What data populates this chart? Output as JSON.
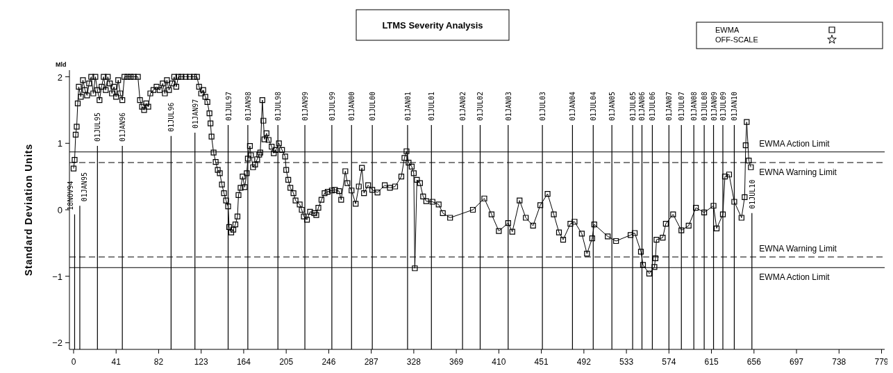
{
  "chart_data": {
    "type": "line",
    "title": "LTMS Severity Analysis",
    "ylabel": "Standard Deviation Units",
    "annotations": [
      "Mld"
    ],
    "xlim": [
      -4,
      782
    ],
    "xticks": [
      0,
      41,
      82,
      123,
      164,
      205,
      246,
      287,
      328,
      369,
      410,
      451,
      492,
      533,
      574,
      615,
      656,
      697,
      738,
      779
    ],
    "ylim": [
      -2.1,
      2.1
    ],
    "yticks": [
      -2,
      -1,
      0,
      1,
      2
    ],
    "grid": false,
    "legend": "top right",
    "line_style": "solid",
    "series": [
      {
        "name": "EWMA",
        "color": "#000000",
        "marker": "square",
        "x": [
          0,
          1,
          2,
          3,
          4,
          5,
          7,
          9,
          11,
          13,
          15,
          17,
          19,
          21,
          23,
          25,
          27,
          29,
          31,
          33,
          35,
          37,
          39,
          41,
          43,
          45,
          47,
          49,
          52,
          55,
          58,
          62,
          64,
          66,
          68,
          70,
          72,
          74,
          77,
          80,
          83,
          86,
          88,
          90,
          92,
          95,
          97,
          99,
          101,
          104,
          108,
          112,
          116,
          119,
          121,
          123,
          125,
          127,
          129,
          131,
          132,
          133,
          135,
          137,
          139,
          141,
          143,
          145,
          147,
          149,
          150,
          152,
          154,
          156,
          158,
          159,
          161,
          163,
          165,
          167,
          168,
          170,
          171,
          173,
          175,
          177,
          179,
          180,
          182,
          183,
          184,
          186,
          188,
          191,
          193,
          195,
          198,
          201,
          204,
          205,
          207,
          209,
          212,
          214,
          218,
          220,
          222,
          225,
          228,
          232,
          234,
          236,
          239,
          242,
          245,
          249,
          252,
          256,
          258,
          262,
          264,
          268,
          272,
          275,
          278,
          280,
          284,
          288,
          293,
          300,
          305,
          310,
          316,
          319,
          321,
          323,
          326,
          328,
          329,
          331,
          334,
          337,
          340,
          346,
          352,
          356,
          363,
          385,
          396,
          403,
          410,
          419,
          423,
          430,
          436,
          443,
          450,
          457,
          463,
          468,
          472,
          479,
          483,
          490,
          495,
          500,
          502,
          515,
          523,
          537,
          541,
          547,
          549,
          555,
          560,
          561,
          562,
          568,
          571,
          578,
          586,
          593,
          600,
          608,
          617,
          620,
          626,
          628,
          632,
          637,
          644,
          647,
          648,
          649,
          651,
          653
        ],
        "values": [
          0.62,
          0.75,
          1.13,
          1.25,
          1.6,
          1.85,
          1.7,
          1.95,
          1.8,
          1.72,
          1.9,
          2.0,
          1.75,
          2.0,
          1.8,
          1.65,
          1.85,
          2.0,
          1.8,
          2.0,
          1.9,
          1.75,
          1.85,
          1.7,
          1.95,
          1.75,
          1.65,
          2.0,
          2.0,
          2.0,
          2.0,
          2.0,
          1.65,
          1.55,
          1.5,
          1.6,
          1.55,
          1.75,
          1.8,
          1.85,
          1.8,
          1.9,
          1.75,
          1.95,
          1.8,
          1.9,
          2.0,
          1.85,
          2.0,
          2.0,
          2.0,
          2.0,
          2.0,
          2.0,
          1.85,
          1.75,
          1.8,
          1.7,
          1.62,
          1.45,
          1.3,
          1.1,
          0.86,
          0.72,
          0.6,
          0.55,
          0.38,
          0.25,
          0.14,
          0.05,
          -0.26,
          -0.34,
          -0.3,
          -0.22,
          -0.1,
          0.22,
          0.33,
          0.5,
          0.34,
          0.55,
          0.77,
          0.96,
          0.82,
          0.64,
          0.68,
          0.76,
          0.83,
          0.86,
          1.65,
          1.34,
          1.06,
          1.15,
          1.05,
          0.95,
          0.85,
          0.9,
          1.0,
          0.9,
          0.8,
          0.6,
          0.45,
          0.33,
          0.25,
          0.14,
          0.08,
          0.0,
          -0.1,
          -0.15,
          -0.03,
          -0.05,
          -0.08,
          0.03,
          0.15,
          0.25,
          0.27,
          0.29,
          0.3,
          0.28,
          0.15,
          0.58,
          0.4,
          0.29,
          0.09,
          0.35,
          0.63,
          0.25,
          0.37,
          0.3,
          0.26,
          0.37,
          0.33,
          0.35,
          0.5,
          0.78,
          0.88,
          0.71,
          0.65,
          0.55,
          -0.88,
          0.45,
          0.4,
          0.2,
          0.13,
          0.12,
          0.08,
          -0.05,
          -0.12,
          0.0,
          0.17,
          -0.07,
          -0.32,
          -0.2,
          -0.33,
          0.14,
          -0.12,
          -0.24,
          0.07,
          0.24,
          -0.07,
          -0.34,
          -0.45,
          -0.21,
          -0.18,
          -0.36,
          -0.66,
          -0.43,
          -0.22,
          -0.4,
          -0.47,
          -0.38,
          -0.35,
          -0.63,
          -0.83,
          -0.96,
          -0.86,
          -0.73,
          -0.45,
          -0.42,
          -0.21,
          -0.07,
          -0.31,
          -0.24,
          0.03,
          -0.04,
          0.06,
          -0.28,
          -0.07,
          0.5,
          0.53,
          0.12,
          -0.12,
          0.19,
          0.97,
          1.32,
          0.74,
          0.64
        ]
      },
      {
        "name": "OFF-SCALE",
        "color": "#000000",
        "marker": "star"
      }
    ],
    "ref_lines": [
      {
        "axis": "y",
        "value": 0.87,
        "label": "EWMA Action Limit",
        "line_style": "solid",
        "color": "#000000"
      },
      {
        "axis": "y",
        "value": 0.71,
        "label": "EWNA Warning Limit",
        "line_style": "dashed",
        "color": "#000000"
      },
      {
        "axis": "y",
        "value": -0.71,
        "label": "EWNA Warning Limit",
        "line_style": "dashed",
        "color": "#000000"
      },
      {
        "axis": "y",
        "value": -0.87,
        "label": "EWMA Action Limit",
        "line_style": "solid",
        "color": "#000000"
      },
      {
        "axis": "x",
        "value": 1,
        "label": "18NOV94"
      },
      {
        "axis": "x",
        "value": 6,
        "label": "01JAN95"
      },
      {
        "axis": "x",
        "value": 23,
        "label": "01JUL95"
      },
      {
        "axis": "x",
        "value": 47,
        "label": "01JAN96"
      },
      {
        "axis": "x",
        "value": 94,
        "label": "01JUL96"
      },
      {
        "axis": "x",
        "value": 117,
        "label": "01JAN97"
      },
      {
        "axis": "x",
        "value": 149,
        "label": "01JUL97"
      },
      {
        "axis": "x",
        "value": 168,
        "label": "01JAN98"
      },
      {
        "axis": "x",
        "value": 197,
        "label": "01JUL98"
      },
      {
        "axis": "x",
        "value": 223,
        "label": "01JAN99"
      },
      {
        "axis": "x",
        "value": 249,
        "label": "01JUL99"
      },
      {
        "axis": "x",
        "value": 268,
        "label": "01JAN00"
      },
      {
        "axis": "x",
        "value": 288,
        "label": "01JUL00"
      },
      {
        "axis": "x",
        "value": 322,
        "label": "01JAN01"
      },
      {
        "axis": "x",
        "value": 345,
        "label": "01JUL01"
      },
      {
        "axis": "x",
        "value": 375,
        "label": "01JAN02"
      },
      {
        "axis": "x",
        "value": 392,
        "label": "01JUL02"
      },
      {
        "axis": "x",
        "value": 419,
        "label": "01JAN03"
      },
      {
        "axis": "x",
        "value": 452,
        "label": "01JUL03"
      },
      {
        "axis": "x",
        "value": 481,
        "label": "01JAN04"
      },
      {
        "axis": "x",
        "value": 501,
        "label": "01JUL04"
      },
      {
        "axis": "x",
        "value": 519,
        "label": "01JAN05"
      },
      {
        "axis": "x",
        "value": 539,
        "label": "01JUL05"
      },
      {
        "axis": "x",
        "value": 548,
        "label": "01JAN06"
      },
      {
        "axis": "x",
        "value": 558,
        "label": "01JUL06"
      },
      {
        "axis": "x",
        "value": 574,
        "label": "01JAN07"
      },
      {
        "axis": "x",
        "value": 586,
        "label": "01JUL07"
      },
      {
        "axis": "x",
        "value": 598,
        "label": "01JAN08"
      },
      {
        "axis": "x",
        "value": 608,
        "label": "01JUL08"
      },
      {
        "axis": "x",
        "value": 617,
        "label": "01JAN09"
      },
      {
        "axis": "x",
        "value": 626,
        "label": "01JUL09"
      },
      {
        "axis": "x",
        "value": 637,
        "label": "01JAN10"
      },
      {
        "axis": "x",
        "value": 654,
        "label": "01JUL10"
      }
    ]
  }
}
